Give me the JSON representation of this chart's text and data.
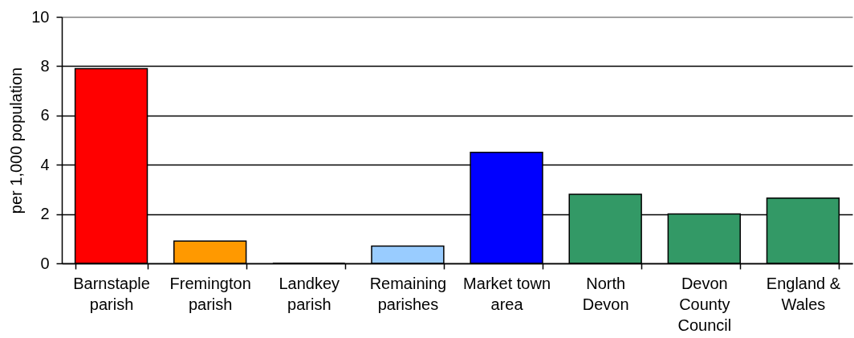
{
  "chart_data": {
    "type": "bar",
    "ylabel": "per 1,000 population",
    "categories": [
      "Barnstaple parish",
      "Fremington parish",
      "Landkey parish",
      "Remaining parishes",
      "Market town area",
      "North Devon",
      "Devon County Council",
      "England & Wales"
    ],
    "values": [
      7.9,
      0.9,
      0,
      0.7,
      4.5,
      2.8,
      2.0,
      2.65
    ],
    "colors": [
      "#ff0000",
      "#ff9900",
      null,
      "#99ccff",
      "#0000ff",
      "#339966",
      "#339966",
      "#339966"
    ],
    "ylim": [
      0,
      10
    ],
    "yticks": [
      0,
      2,
      4,
      6,
      8,
      10
    ],
    "grid": "y",
    "legend": false
  }
}
